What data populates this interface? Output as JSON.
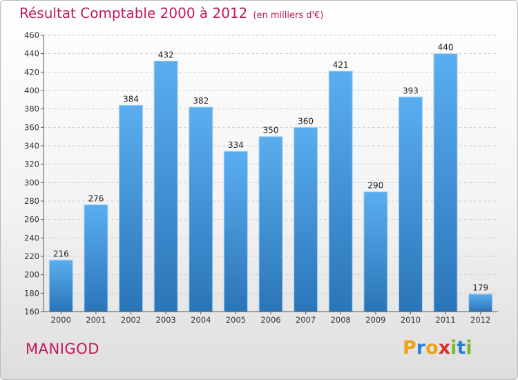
{
  "chart_data": {
    "type": "bar",
    "title": "Résultat Comptable 2000 à 2012",
    "subtitle": "(en milliers d'€)",
    "categories": [
      "2000",
      "2001",
      "2002",
      "2003",
      "2004",
      "2005",
      "2006",
      "2007",
      "2008",
      "2009",
      "2010",
      "2011",
      "2012"
    ],
    "values": [
      216,
      276,
      384,
      432,
      382,
      334,
      350,
      360,
      421,
      290,
      393,
      440,
      179
    ],
    "xlabel": "",
    "ylabel": "",
    "ylim": [
      160,
      460
    ],
    "yticks": [
      160,
      180,
      200,
      220,
      240,
      260,
      280,
      300,
      320,
      340,
      360,
      380,
      400,
      420,
      440,
      460
    ],
    "grid": true,
    "bar_color": "#3d8fd6"
  },
  "commune": "MANIGOD",
  "logo": {
    "text": "Proxiti",
    "letter_colors": [
      "#e8a317",
      "#2a7fd4",
      "#e8a317",
      "#d6332e",
      "#7cb82f",
      "#2a7fd4",
      "#7cb82f"
    ]
  },
  "colors": {
    "title": "#c2185b",
    "commune": "#c2185b"
  }
}
